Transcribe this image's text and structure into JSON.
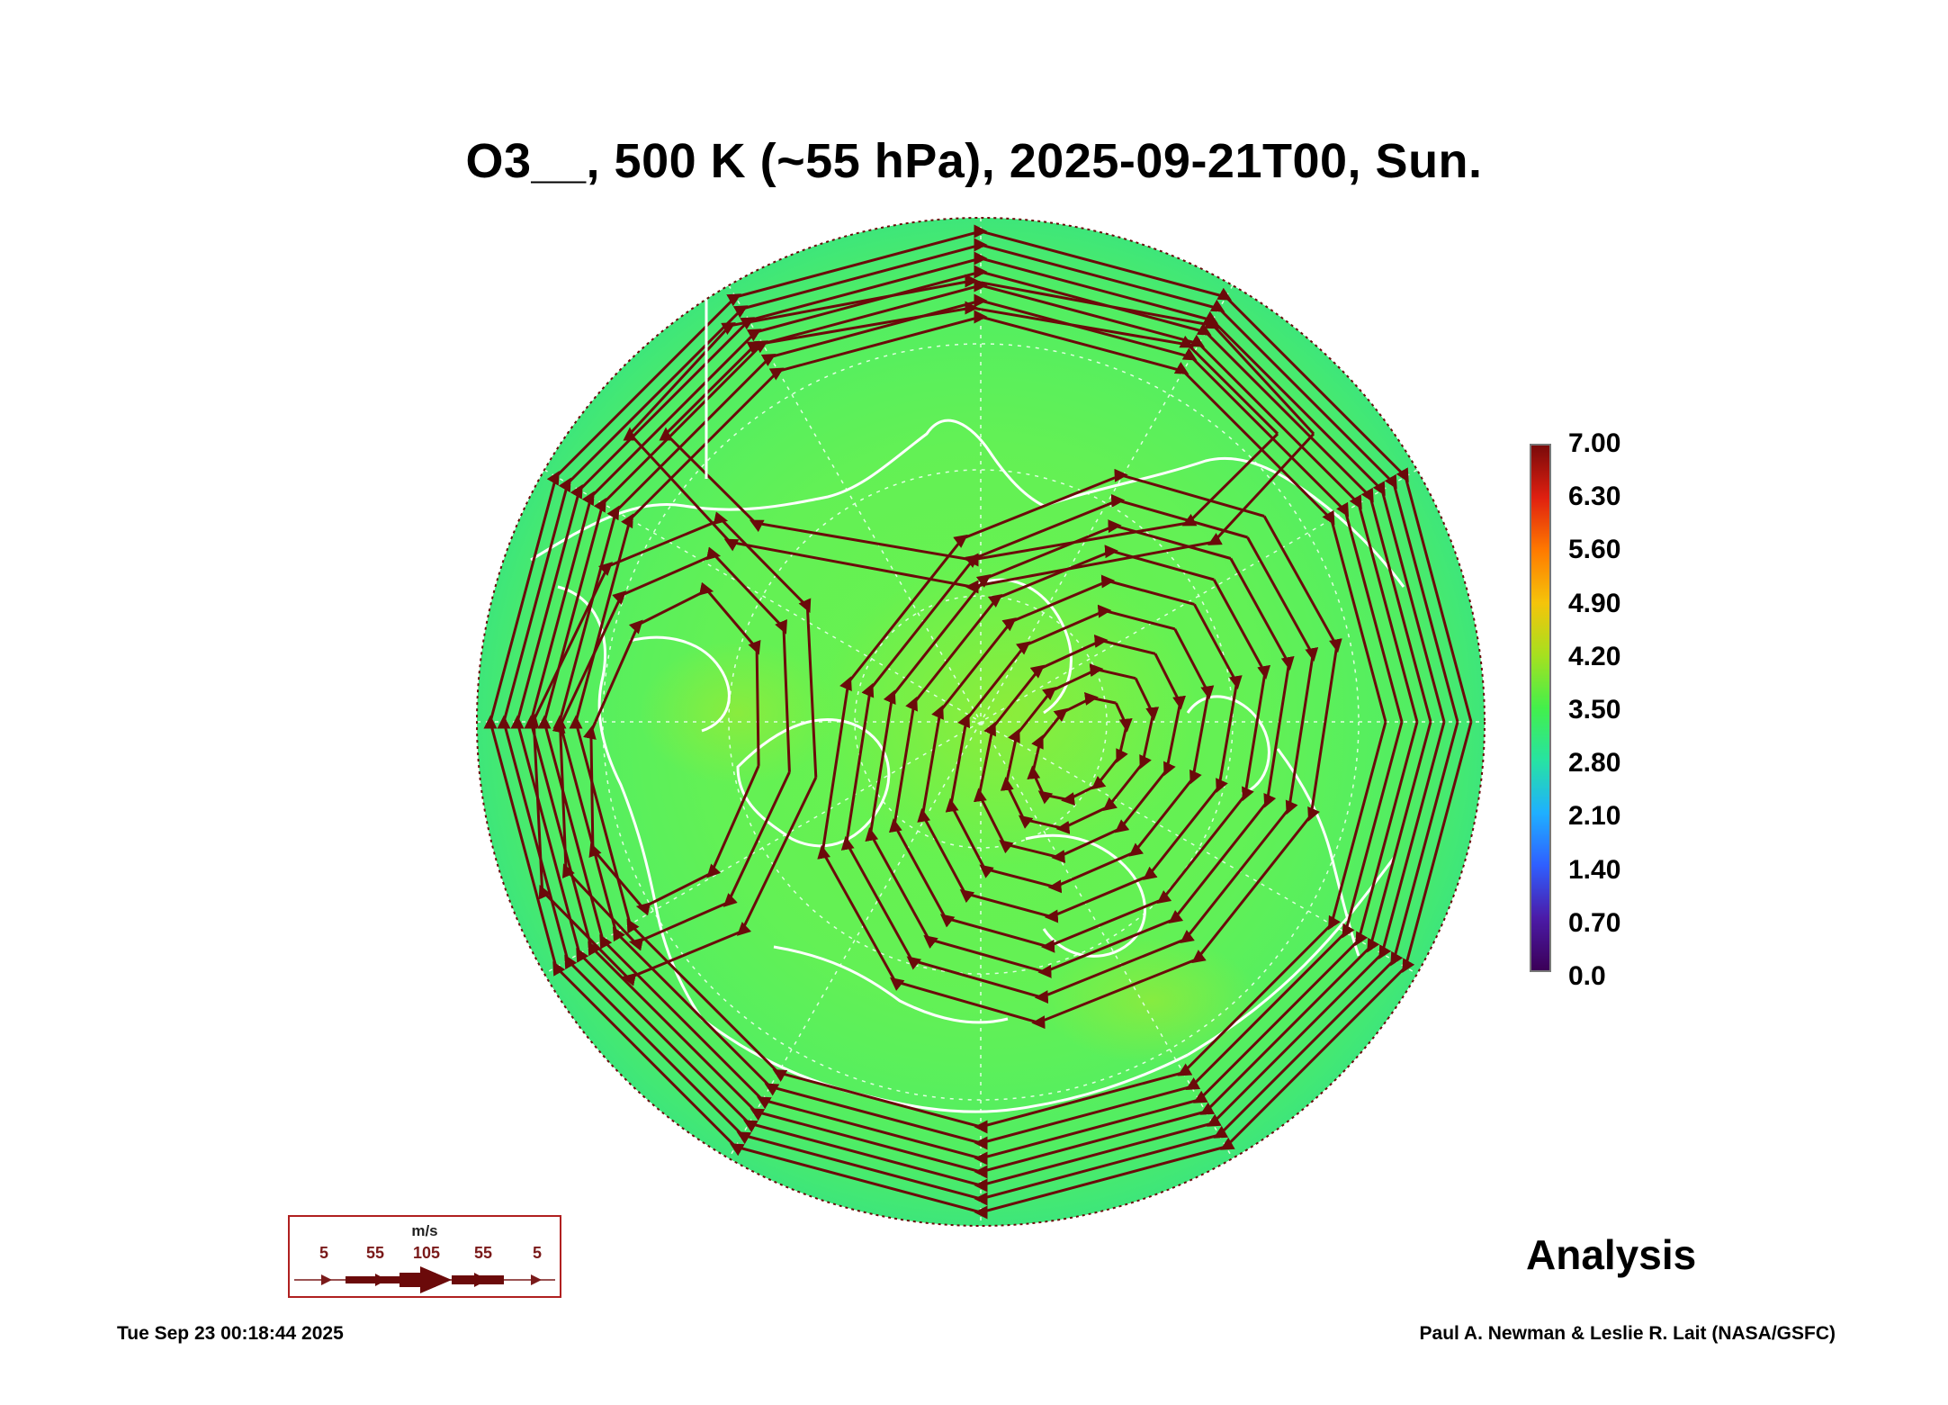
{
  "title": "O3__, 500 K (~55 hPa), 2025-09-21T00, Sun.",
  "colorbar": {
    "labels": [
      "7.00",
      "6.30",
      "5.60",
      "4.90",
      "4.20",
      "3.50",
      "2.80",
      "2.10",
      "1.40",
      "0.70",
      "0.0"
    ],
    "range": [
      0.0,
      7.0
    ],
    "colors": [
      "#3b0057",
      "#4b1ba8",
      "#2f5fff",
      "#1fb0ff",
      "#27e3a2",
      "#43f04b",
      "#a6e01f",
      "#f5c40a",
      "#ff7a00",
      "#e02010",
      "#7a0a0a"
    ]
  },
  "map": {
    "projection": "polar stereographic (north)",
    "field_color": "#5ff25a",
    "streamline_color": "#6b0a0a",
    "coastline_color": "#ffffff"
  },
  "wind_legend": {
    "unit": "m/s",
    "speeds": [
      "5",
      "55",
      "105",
      "55",
      "5"
    ]
  },
  "label": "Analysis",
  "footer": {
    "timestamp": "Tue Sep 23 00:18:44 2025",
    "credit": "Paul A. Newman & Leslie R. Lait (NASA/GSFC)"
  }
}
